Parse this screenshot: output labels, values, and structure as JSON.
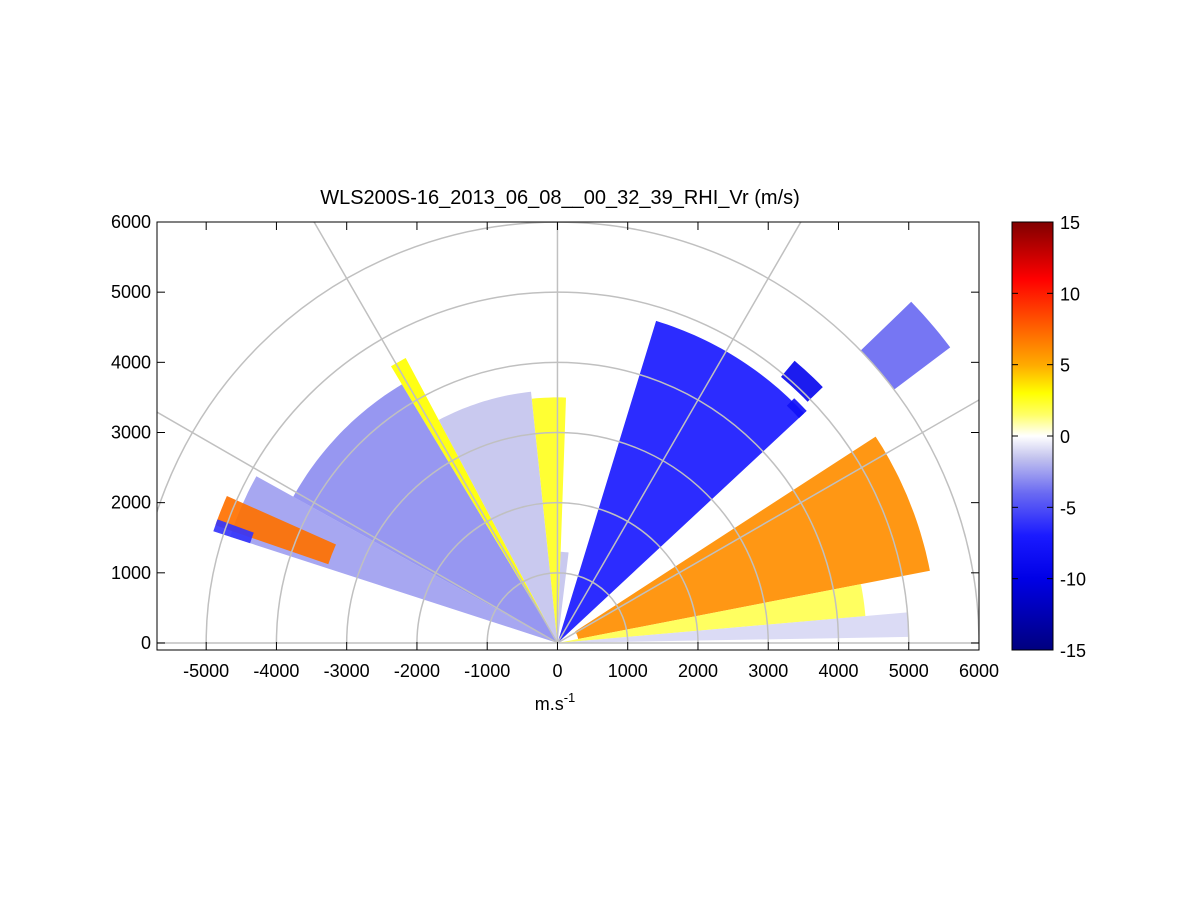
{
  "chart_data": {
    "type": "heatmap",
    "subtype": "polar-rhi-scan",
    "title": "WLS200S-16_2013_06_08__00_32_39_RHI_Vr (m/s)",
    "xlabel": {
      "base": "m.s",
      "sup": "-1"
    },
    "ylabel": "",
    "xlim": [
      -5700,
      6000
    ],
    "ylim": [
      -100,
      6000
    ],
    "x_ticks": [
      -5000,
      -4000,
      -3000,
      -2000,
      -1000,
      0,
      1000,
      2000,
      3000,
      4000,
      5000,
      6000
    ],
    "y_ticks": [
      0,
      1000,
      2000,
      3000,
      4000,
      5000,
      6000
    ],
    "polar_grid": {
      "range_rings": [
        1000,
        2000,
        3000,
        4000,
        5000,
        6000
      ],
      "spokes_deg": [
        0,
        30,
        60,
        90,
        120,
        150,
        180
      ]
    },
    "colorbar": {
      "range": [
        -15,
        15
      ],
      "ticks": [
        15,
        10,
        5,
        0,
        -5,
        -10,
        -15
      ],
      "colormap": [
        [
          -15,
          "#00007f"
        ],
        [
          -10,
          "#0000e6"
        ],
        [
          -7,
          "#1a1aff"
        ],
        [
          -4,
          "#6a6af2"
        ],
        [
          -1.5,
          "#c4c4ee"
        ],
        [
          0,
          "#ffffff"
        ],
        [
          1.5,
          "#ffff66"
        ],
        [
          3,
          "#ffff00"
        ],
        [
          5,
          "#ffaa00"
        ],
        [
          8,
          "#ff5500"
        ],
        [
          11,
          "#ff0000"
        ],
        [
          15,
          "#800000"
        ]
      ]
    },
    "grid": true,
    "sectors": [
      {
        "az": [
          151,
          162
        ],
        "r": [
          0,
          4900
        ],
        "v": -2.5
      },
      {
        "az": [
          156,
          161
        ],
        "r": [
          3450,
          5150
        ],
        "v": 7.0
      },
      {
        "az": [
          160,
          162
        ],
        "r": [
          4600,
          5150
        ],
        "v": -6.0
      },
      {
        "az": [
          121,
          151
        ],
        "r": [
          0,
          4300
        ],
        "v": -3.0
      },
      {
        "az": [
          118,
          121
        ],
        "r": [
          0,
          4600
        ],
        "v": 3.0
      },
      {
        "az": [
          96,
          118
        ],
        "r": [
          0,
          3600
        ],
        "v": -1.5
      },
      {
        "az": [
          88,
          96
        ],
        "r": [
          0,
          3500
        ],
        "v": 2.5
      },
      {
        "az": [
          83,
          88
        ],
        "r": [
          0,
          1300
        ],
        "v": -1.5
      },
      {
        "az": [
          43,
          73
        ],
        "r": [
          0,
          4800
        ],
        "v": -7.0
      },
      {
        "az": [
          44,
          50
        ],
        "r": [
          4950,
          5250
        ],
        "v": -9.0
      },
      {
        "az": [
          43,
          46
        ],
        "r": [
          4700,
          4850
        ],
        "v": -8.0
      },
      {
        "az": [
          37,
          44
        ],
        "r": [
          6000,
          7000
        ],
        "v": -4.0
      },
      {
        "az": [
          11,
          33
        ],
        "r": [
          300,
          5400
        ],
        "v": 6.0
      },
      {
        "az": [
          5,
          11
        ],
        "r": [
          0,
          4400
        ],
        "v": 1.8
      },
      {
        "az": [
          1,
          5
        ],
        "r": [
          0,
          5000
        ],
        "v": -1.0
      }
    ]
  }
}
